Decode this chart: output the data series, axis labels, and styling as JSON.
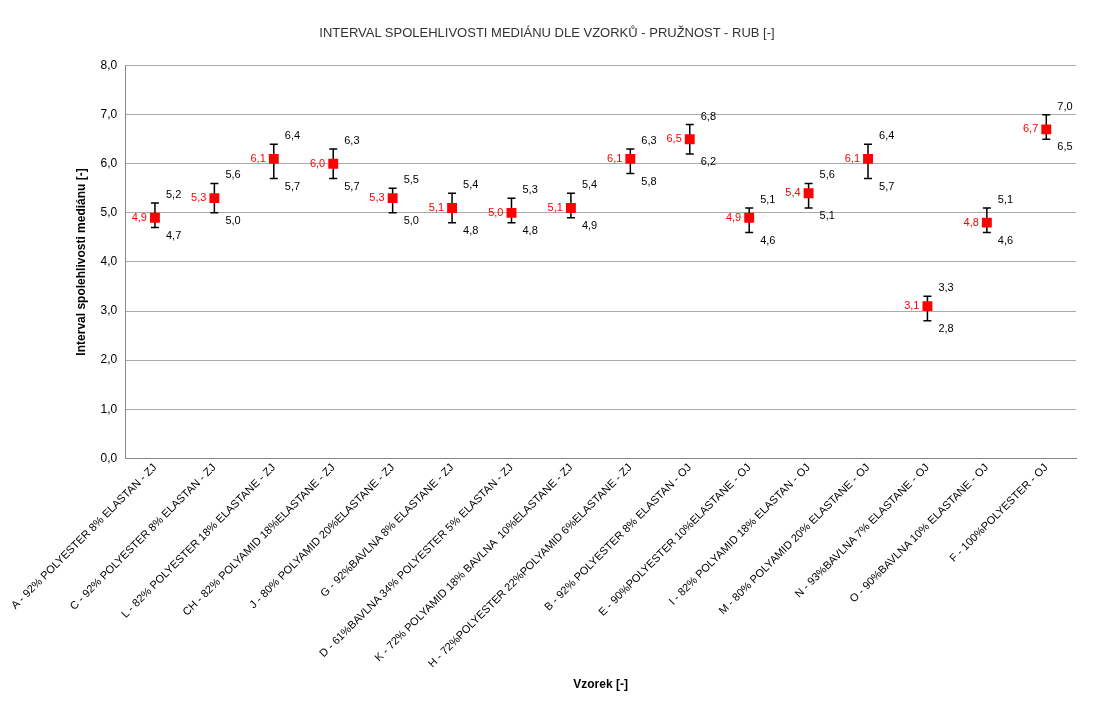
{
  "chart_data": {
    "type": "scatter",
    "title": "INTERVAL SPOLEHLIVOSTI MEDIÁNU DLE VZORKŮ - PRUŽNOST - RUB [-]",
    "xlabel": "Vzorek [-]",
    "ylabel": "Interval spolehlivosti mediánu [-]",
    "categories": [
      "A - 92% POLYESTER 8% ELASTAN - ZJ",
      "C - 92% POLYESTER 8% ELASTAN - ZJ",
      "L - 82% POLYESTER 18% ELASTANE - ZJ",
      "CH - 82% POLYAMID 18%ELASTANE - ZJ",
      "J - 80% POLYAMID 20%ELASTANE - ZJ",
      "G - 92%BAVLNA 8% ELASTANE - ZJ",
      "D - 61%BAVLNA 34% POLYESTER 5% ELASTAN - ZJ",
      "K - 72% POLYAMID 18% BAVLNA  10%ELASTANE - ZJ",
      "H - 72%POLYESTER 22%POLYAMID 6%ELASTANE - ZJ",
      "B - 92% POLYESTER 8% ELASTAN - OJ",
      "E - 90%POLYESTER 10%ELASTANE - OJ",
      "I - 82% POLYAMID 18% ELASTAN - OJ",
      "M - 80% POLYAMID 20% ELASTANE - OJ",
      "N - 93%BAVLNA 7% ELASTANE - OJ",
      "O - 90%BAVLNA 10% ELASTANE - OJ",
      "F - 100%POLYESTER - OJ"
    ],
    "series": [
      {
        "color": "#ff0000",
        "values": [
          4.9,
          5.3,
          6.1,
          6.0,
          5.3,
          5.1,
          5.0,
          5.1,
          6.1,
          6.5,
          4.9,
          5.4,
          6.1,
          3.1,
          4.8,
          6.7
        ],
        "value_labels": [
          "4,9",
          "5,3",
          "6,1",
          "6,0",
          "5,3",
          "5,1",
          "5,0",
          "5,1",
          "6,1",
          "6,5",
          "4,9",
          "5,4",
          "6,1",
          "3,1",
          "4,8",
          "6,7"
        ],
        "errors": [
          [
            4.7,
            5.2
          ],
          [
            5.0,
            5.6
          ],
          [
            5.7,
            6.4
          ],
          [
            5.7,
            6.3
          ],
          [
            5.0,
            5.5
          ],
          [
            4.8,
            5.4
          ],
          [
            4.8,
            5.3
          ],
          [
            4.9,
            5.4
          ],
          [
            5.8,
            6.3
          ],
          [
            6.2,
            6.8
          ],
          [
            4.6,
            5.1
          ],
          [
            5.1,
            5.6
          ],
          [
            5.7,
            6.4
          ],
          [
            2.8,
            3.3
          ],
          [
            4.6,
            5.1
          ],
          [
            6.5,
            7.0
          ]
        ]
      }
    ],
    "annotations": [
      {
        "text": "5,2",
        "x": "A - 92% POLYESTER 8% ELASTAN - ZJ",
        "y": 5.2
      },
      {
        "text": "4,7",
        "x": "A - 92% POLYESTER 8% ELASTAN - ZJ",
        "y": 4.7
      },
      {
        "text": "5,6",
        "x": "C - 92% POLYESTER 8% ELASTAN - ZJ",
        "y": 5.6
      },
      {
        "text": "5,0",
        "x": "C - 92% POLYESTER 8% ELASTAN - ZJ",
        "y": 5.0
      },
      {
        "text": "6,4",
        "x": "L - 82% POLYESTER 18% ELASTANE - ZJ",
        "y": 6.4
      },
      {
        "text": "5,7",
        "x": "L - 82% POLYESTER 18% ELASTANE - ZJ",
        "y": 5.7
      },
      {
        "text": "6,3",
        "x": "CH - 82% POLYAMID 18%ELASTANE - ZJ",
        "y": 6.3
      },
      {
        "text": "5,7",
        "x": "CH - 82% POLYAMID 18%ELASTANE - ZJ",
        "y": 5.7
      },
      {
        "text": "5,5",
        "x": "J - 80% POLYAMID 20%ELASTANE - ZJ",
        "y": 5.5
      },
      {
        "text": "5,0",
        "x": "J - 80% POLYAMID 20%ELASTANE - ZJ",
        "y": 5.0
      },
      {
        "text": "5,4",
        "x": "G - 92%BAVLNA 8% ELASTANE - ZJ",
        "y": 5.4
      },
      {
        "text": "4,8",
        "x": "G - 92%BAVLNA 8% ELASTANE - ZJ",
        "y": 4.8
      },
      {
        "text": "5,3",
        "x": "D - 61%BAVLNA 34% POLYESTER 5% ELASTAN - ZJ",
        "y": 5.3
      },
      {
        "text": "4,8",
        "x": "D - 61%BAVLNA 34% POLYESTER 5% ELASTAN - ZJ",
        "y": 4.8
      },
      {
        "text": "5,4",
        "x": "K - 72% POLYAMID 18% BAVLNA  10%ELASTANE - ZJ",
        "y": 5.4
      },
      {
        "text": "4,9",
        "x": "K - 72% POLYAMID 18% BAVLNA  10%ELASTANE - ZJ",
        "y": 4.9
      },
      {
        "text": "6,3",
        "x": "H - 72%POLYESTER 22%POLYAMID 6%ELASTANE - ZJ",
        "y": 6.3
      },
      {
        "text": "5,8",
        "x": "H - 72%POLYESTER 22%POLYAMID 6%ELASTANE - ZJ",
        "y": 5.8
      },
      {
        "text": "6,8",
        "x": "B - 92% POLYESTER 8% ELASTAN - OJ",
        "y": 6.8
      },
      {
        "text": "6,2",
        "x": "B - 92% POLYESTER 8% ELASTAN - OJ",
        "y": 6.2
      },
      {
        "text": "5,1",
        "x": "E - 90%POLYESTER 10%ELASTANE - OJ",
        "y": 5.1
      },
      {
        "text": "4,6",
        "x": "E - 90%POLYESTER 10%ELASTANE - OJ",
        "y": 4.6
      },
      {
        "text": "5,6",
        "x": "I - 82% POLYAMID 18% ELASTAN - OJ",
        "y": 5.6
      },
      {
        "text": "5,1",
        "x": "I - 82% POLYAMID 18% ELASTAN - OJ",
        "y": 5.1
      },
      {
        "text": "6,4",
        "x": "M - 80% POLYAMID 20% ELASTANE - OJ",
        "y": 6.4
      },
      {
        "text": "5,7",
        "x": "M - 80% POLYAMID 20% ELASTANE - OJ",
        "y": 5.7
      },
      {
        "text": "3,3",
        "x": "N - 93%BAVLNA 7% ELASTANE - OJ",
        "y": 3.3
      },
      {
        "text": "2,8",
        "x": "N - 93%BAVLNA 7% ELASTANE - OJ",
        "y": 2.8
      },
      {
        "text": "5,1",
        "x": "O - 90%BAVLNA 10% ELASTANE - OJ",
        "y": 5.1
      },
      {
        "text": "4,6",
        "x": "O - 90%BAVLNA 10% ELASTANE - OJ",
        "y": 4.6
      },
      {
        "text": "7,0",
        "x": "F - 100%POLYESTER - OJ",
        "y": 7.0
      },
      {
        "text": "6,5",
        "x": "F - 100%POLYESTER - OJ",
        "y": 6.5
      }
    ],
    "ylim": [
      0,
      8
    ],
    "yticks": [
      {
        "value": 0,
        "label": "0,0"
      },
      {
        "value": 1,
        "label": "1,0"
      },
      {
        "value": 2,
        "label": "2,0"
      },
      {
        "value": 3,
        "label": "3,0"
      },
      {
        "value": 4,
        "label": "4,0"
      },
      {
        "value": 5,
        "label": "5,0"
      },
      {
        "value": 6,
        "label": "6,0"
      },
      {
        "value": 7,
        "label": "7,0"
      },
      {
        "value": 8,
        "label": "8,0"
      }
    ],
    "grid": "y",
    "legend": false,
    "marker": "square"
  }
}
